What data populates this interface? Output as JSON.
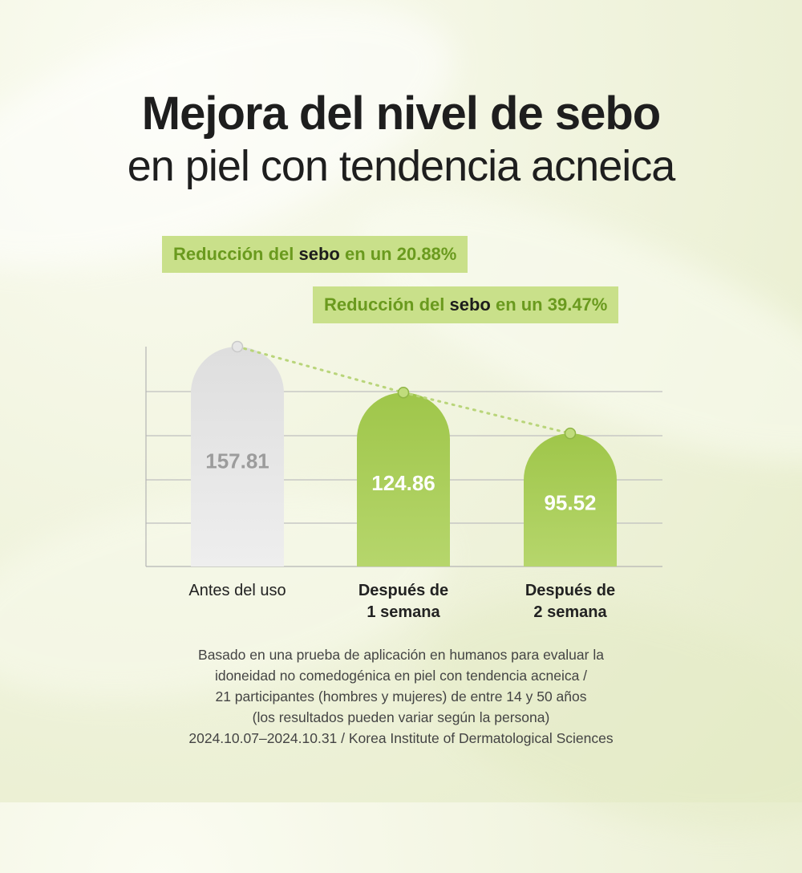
{
  "title_line1": "Mejora del nivel de sebo",
  "title_line2": "en piel con tendencia acneica",
  "callouts": [
    {
      "prefix": "Reducción del ",
      "highlight": "sebo",
      "suffix": " en un 20.88%"
    },
    {
      "prefix": "Reducción del ",
      "highlight": "sebo",
      "suffix": " en un 39.47%"
    }
  ],
  "chart_data": {
    "type": "bar",
    "categories": [
      [
        "Antes del uso"
      ],
      [
        "Después de",
        "1 semana"
      ],
      [
        "Después de",
        "2 semana"
      ]
    ],
    "values": [
      157.81,
      124.86,
      95.52
    ],
    "value_labels": [
      "157.81",
      "124.86",
      "95.52"
    ],
    "ylim": [
      0,
      170
    ],
    "gridlines": 5,
    "trend_line": "dotted",
    "colors": {
      "before": "#d6d6d6",
      "after": "#a6cc52",
      "trend": "#b9d57a"
    }
  },
  "notes": [
    "Basado en una prueba de aplicación en humanos para evaluar la",
    "idoneidad no comedogénica en piel con tendencia acneica /",
    "21 participantes (hombres y mujeres) de entre 14 y 50 años",
    "(los resultados pueden variar según la persona)",
    "2024.10.07–2024.10.31 / Korea Institute of Dermatological Sciences"
  ]
}
